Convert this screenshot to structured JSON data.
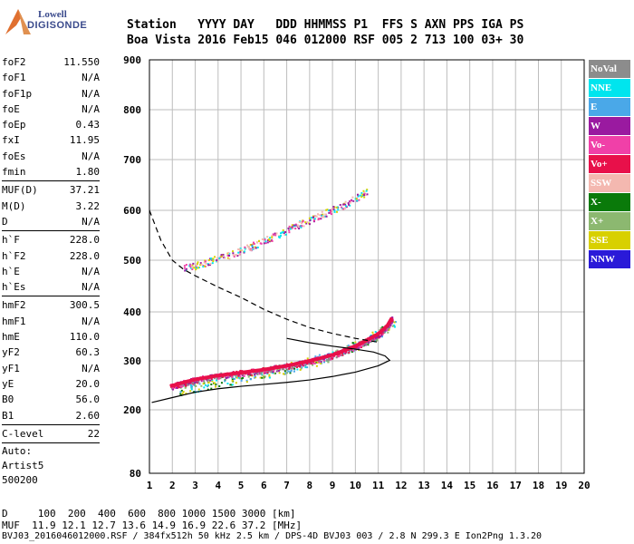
{
  "brand": {
    "line1": "Lowell",
    "line2": "DIGISONDE"
  },
  "header": {
    "line1": "Station   YYYY DAY   DDD HHMMSS P1  FFS S AXN PPS IGA PS",
    "line2": "Boa Vista 2016 Feb15 046 012000 RSF 005 2 713 100 03+ 30"
  },
  "params": {
    "g1": [
      {
        "k": "foF2",
        "v": "11.550"
      },
      {
        "k": "foF1",
        "v": "N/A"
      },
      {
        "k": "foF1p",
        "v": "N/A"
      },
      {
        "k": "foE",
        "v": "N/A"
      },
      {
        "k": "foEp",
        "v": "0.43"
      },
      {
        "k": "fxI",
        "v": "11.95"
      },
      {
        "k": "foEs",
        "v": "N/A"
      },
      {
        "k": "fmin",
        "v": "1.80"
      }
    ],
    "g2": [
      {
        "k": "MUF(D)",
        "v": "37.21"
      },
      {
        "k": "M(D)",
        "v": "3.22"
      },
      {
        "k": "D",
        "v": "N/A"
      }
    ],
    "g3": [
      {
        "k": "h`F",
        "v": "228.0"
      },
      {
        "k": "h`F2",
        "v": "228.0"
      },
      {
        "k": "h`E",
        "v": "N/A"
      },
      {
        "k": "h`Es",
        "v": "N/A"
      }
    ],
    "g4": [
      {
        "k": "hmF2",
        "v": "300.5"
      },
      {
        "k": "hmF1",
        "v": "N/A"
      },
      {
        "k": "hmE",
        "v": "110.0"
      },
      {
        "k": "yF2",
        "v": "60.3"
      },
      {
        "k": "yF1",
        "v": "N/A"
      },
      {
        "k": "yE",
        "v": "20.0"
      },
      {
        "k": "B0",
        "v": "56.0"
      },
      {
        "k": "B1",
        "v": "2.60"
      }
    ],
    "g5": [
      {
        "k": "C-level",
        "v": "22"
      }
    ],
    "notes": [
      "Auto:",
      "Artist5",
      "500200"
    ]
  },
  "footer": {
    "d_line": "D     100  200  400  600  800 1000 1500 3000 [km]",
    "muf_line": "MUF  11.9 12.1 12.7 13.6 14.9 16.9 22.6 37.2 [MHz]",
    "file_line": "BVJ03_2016046012000.RSF / 384fx512h 50 kHz 2.5 km / DPS-4D BVJ03 003 / 2.8 N 299.3 E Ion2Png 1.3.20"
  },
  "legend": [
    {
      "label": "NoVal",
      "color": "#8c8c8c"
    },
    {
      "label": "NNE",
      "color": "#00e5ee"
    },
    {
      "label": "E",
      "color": "#4aa8e8"
    },
    {
      "label": "W",
      "color": "#9a1aa0"
    },
    {
      "label": "Vo-",
      "color": "#f040a8"
    },
    {
      "label": "Vo+",
      "color": "#e8104a"
    },
    {
      "label": "SSW",
      "color": "#f4b8b0"
    },
    {
      "label": "X-",
      "color": "#0a7a0a"
    },
    {
      "label": "X+",
      "color": "#8cb870"
    },
    {
      "label": "SSE",
      "color": "#d8d000"
    },
    {
      "label": "NNW",
      "color": "#2a1ad8"
    }
  ],
  "chart_data": {
    "type": "scatter",
    "x_ticks": [
      "1",
      "2",
      "3",
      "4",
      "5",
      "6",
      "7",
      "8",
      "9",
      "10",
      "11",
      "12",
      "13",
      "14",
      "15",
      "16",
      "17",
      "18",
      "19",
      "20"
    ],
    "y_ticks": [
      "80",
      "200",
      "300",
      "400",
      "500",
      "600",
      "700",
      "800",
      "900"
    ],
    "xlim": [
      1,
      20
    ],
    "ylim": [
      80,
      900
    ],
    "y_scale": "reciprocal",
    "grid": true,
    "trace_o": [
      [
        1.9,
        248
      ],
      [
        2.5,
        256
      ],
      [
        3,
        262
      ],
      [
        4,
        270
      ],
      [
        5,
        276
      ],
      [
        6,
        282
      ],
      [
        7,
        290
      ],
      [
        8,
        300
      ],
      [
        9,
        312
      ],
      [
        10,
        330
      ],
      [
        10.5,
        342
      ],
      [
        11,
        355
      ],
      [
        11.4,
        372
      ],
      [
        11.6,
        388
      ]
    ],
    "trace_x": [
      [
        2.3,
        240
      ],
      [
        3,
        248
      ],
      [
        4,
        258
      ],
      [
        5,
        268
      ],
      [
        6,
        276
      ],
      [
        7,
        286
      ],
      [
        8,
        298
      ],
      [
        9,
        312
      ],
      [
        10,
        332
      ],
      [
        11,
        356
      ],
      [
        11.8,
        385
      ]
    ],
    "multi_hop": [
      [
        2.5,
        485
      ],
      [
        3.5,
        497
      ],
      [
        4.5,
        512
      ],
      [
        5.5,
        530
      ],
      [
        6.5,
        550
      ],
      [
        7.5,
        572
      ],
      [
        8.5,
        592
      ],
      [
        9.5,
        612
      ],
      [
        10.5,
        638
      ]
    ],
    "profile": [
      [
        1.1,
        215
      ],
      [
        2,
        225
      ],
      [
        3,
        236
      ],
      [
        4,
        243
      ],
      [
        5,
        248
      ],
      [
        6,
        252
      ],
      [
        7,
        256
      ],
      [
        8,
        261
      ],
      [
        9,
        268
      ],
      [
        10,
        277
      ],
      [
        11,
        290
      ],
      [
        11.5,
        301
      ],
      [
        11.3,
        310
      ],
      [
        10.8,
        318
      ],
      [
        10,
        324
      ],
      [
        9,
        330
      ],
      [
        8,
        337
      ],
      [
        7,
        346
      ]
    ],
    "muf_curve": [
      [
        1,
        600
      ],
      [
        1.5,
        540
      ],
      [
        2,
        500
      ],
      [
        2.5,
        482
      ],
      [
        3,
        470
      ],
      [
        4,
        448
      ],
      [
        5,
        428
      ],
      [
        6,
        405
      ],
      [
        7,
        385
      ],
      [
        8,
        368
      ],
      [
        9,
        356
      ],
      [
        10,
        346
      ],
      [
        11,
        338
      ]
    ]
  }
}
